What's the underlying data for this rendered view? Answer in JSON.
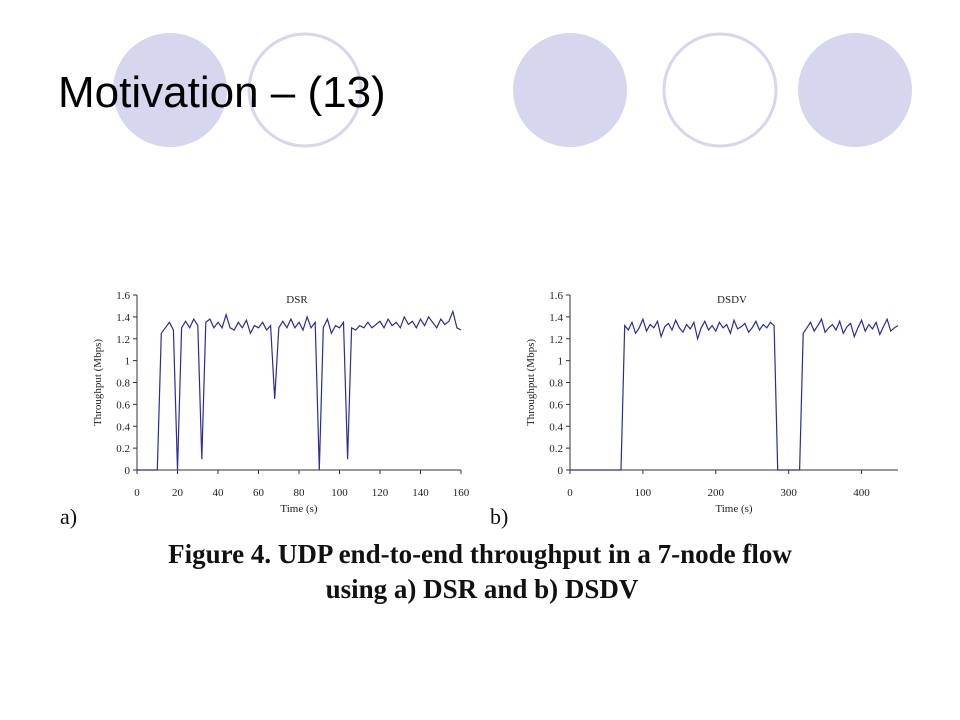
{
  "title": "Motivation – (13)",
  "caption": [
    "Figure 4. UDP end-to-end throughput in a 7-node flow",
    "using a) DSR and b) DSDV"
  ],
  "chart_data": [
    {
      "type": "line",
      "panel_label": "a)",
      "title": "DSR",
      "xlabel": "Time (s)",
      "ylabel": "Throughput (Mbps)",
      "xlim": [
        0,
        160
      ],
      "xticks": [
        0,
        20,
        40,
        60,
        80,
        100,
        120,
        140,
        160
      ],
      "ylim": [
        0,
        1.6
      ],
      "yticks": [
        0,
        0.2,
        0.4,
        0.6,
        0.8,
        1,
        1.2,
        1.4,
        1.6
      ],
      "x": [
        0,
        2,
        4,
        6,
        8,
        10,
        12,
        14,
        16,
        18,
        20,
        22,
        24,
        26,
        28,
        30,
        32,
        34,
        36,
        38,
        40,
        42,
        44,
        46,
        48,
        50,
        52,
        54,
        56,
        58,
        60,
        62,
        64,
        66,
        68,
        70,
        72,
        74,
        76,
        78,
        80,
        82,
        84,
        86,
        88,
        90,
        92,
        94,
        96,
        98,
        100,
        102,
        104,
        106,
        108,
        110,
        112,
        114,
        116,
        118,
        120,
        122,
        124,
        126,
        128,
        130,
        132,
        134,
        136,
        138,
        140,
        142,
        144,
        146,
        148,
        150,
        152,
        154,
        156,
        158,
        160
      ],
      "series": [
        {
          "name": "DSR",
          "color": "#2b2b9a",
          "values": [
            0,
            0,
            0,
            0,
            0,
            0,
            1.25,
            1.3,
            1.35,
            1.28,
            0,
            1.3,
            1.36,
            1.3,
            1.38,
            1.32,
            0.1,
            1.35,
            1.38,
            1.3,
            1.35,
            1.3,
            1.42,
            1.3,
            1.28,
            1.35,
            1.3,
            1.37,
            1.25,
            1.32,
            1.3,
            1.35,
            1.28,
            1.32,
            0.65,
            1.3,
            1.36,
            1.3,
            1.38,
            1.3,
            1.35,
            1.28,
            1.4,
            1.3,
            1.35,
            0,
            1.3,
            1.38,
            1.25,
            1.32,
            1.3,
            1.35,
            0.1,
            1.3,
            1.28,
            1.32,
            1.3,
            1.35,
            1.3,
            1.33,
            1.36,
            1.3,
            1.38,
            1.32,
            1.35,
            1.3,
            1.4,
            1.33,
            1.36,
            1.3,
            1.38,
            1.32,
            1.4,
            1.35,
            1.3,
            1.38,
            1.33,
            1.36,
            1.45,
            1.3,
            1.28
          ]
        }
      ]
    },
    {
      "type": "line",
      "panel_label": "b)",
      "title": "DSDV",
      "xlabel": "Time (s)",
      "ylabel": "Throughput (Mbps)",
      "xlim": [
        0,
        450
      ],
      "xticks": [
        0,
        100,
        200,
        300,
        400
      ],
      "ylim": [
        0,
        1.6
      ],
      "yticks": [
        0,
        0.2,
        0.4,
        0.6,
        0.8,
        1,
        1.2,
        1.4,
        1.6
      ],
      "x": [
        0,
        5,
        10,
        15,
        20,
        25,
        30,
        35,
        40,
        45,
        50,
        55,
        60,
        65,
        70,
        75,
        80,
        85,
        90,
        95,
        100,
        105,
        110,
        115,
        120,
        125,
        130,
        135,
        140,
        145,
        150,
        155,
        160,
        165,
        170,
        175,
        180,
        185,
        190,
        195,
        200,
        205,
        210,
        215,
        220,
        225,
        230,
        235,
        240,
        245,
        250,
        255,
        260,
        265,
        270,
        275,
        280,
        285,
        290,
        295,
        300,
        305,
        310,
        315,
        320,
        325,
        330,
        335,
        340,
        345,
        350,
        355,
        360,
        365,
        370,
        375,
        380,
        385,
        390,
        395,
        400,
        405,
        410,
        415,
        420,
        425,
        430,
        435,
        440,
        445,
        450
      ],
      "series": [
        {
          "name": "DSDV",
          "color": "#2b2b9a",
          "values": [
            0,
            0,
            0,
            0,
            0,
            0,
            0,
            0,
            0,
            0,
            0,
            0,
            0,
            0,
            0,
            1.32,
            1.28,
            1.35,
            1.25,
            1.3,
            1.38,
            1.27,
            1.33,
            1.3,
            1.36,
            1.22,
            1.31,
            1.34,
            1.28,
            1.37,
            1.3,
            1.26,
            1.33,
            1.29,
            1.35,
            1.2,
            1.3,
            1.36,
            1.28,
            1.32,
            1.27,
            1.35,
            1.3,
            1.33,
            1.25,
            1.37,
            1.29,
            1.31,
            1.34,
            1.26,
            1.3,
            1.36,
            1.28,
            1.33,
            1.3,
            1.35,
            1.32,
            0,
            0,
            0,
            0,
            0,
            0,
            0,
            1.25,
            1.3,
            1.35,
            1.27,
            1.32,
            1.38,
            1.26,
            1.3,
            1.33,
            1.28,
            1.36,
            1.25,
            1.31,
            1.34,
            1.22,
            1.3,
            1.37,
            1.27,
            1.33,
            1.29,
            1.35,
            1.24,
            1.31,
            1.38,
            1.27,
            1.3,
            1.32
          ]
        }
      ]
    }
  ]
}
